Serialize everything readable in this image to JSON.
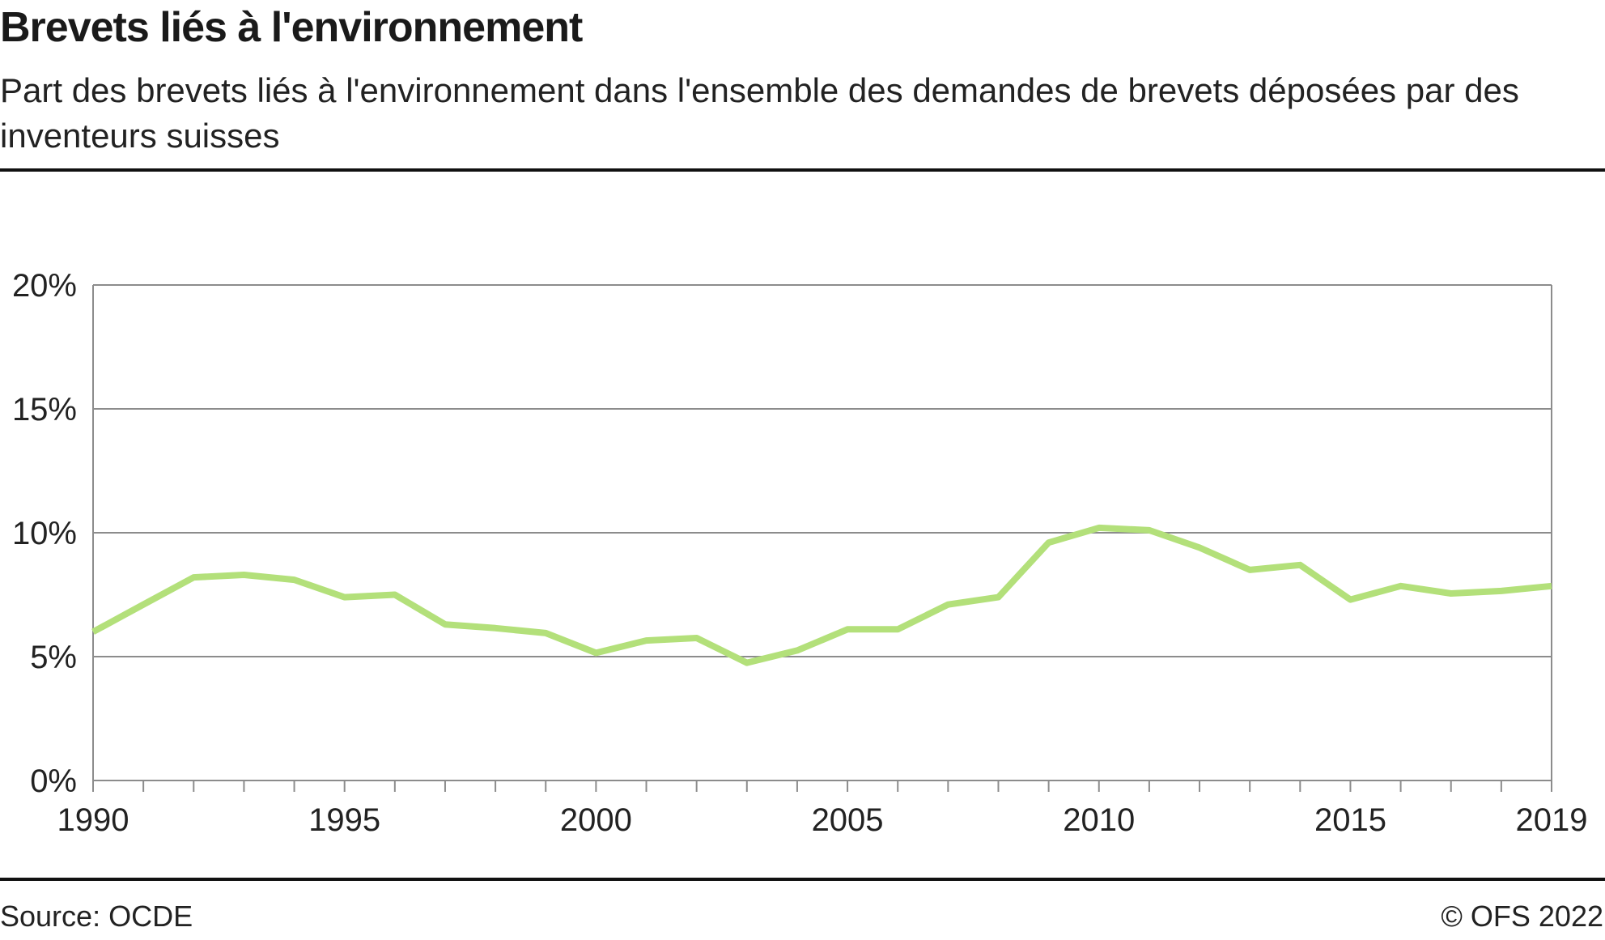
{
  "header": {
    "title": "Brevets liés à l'environnement",
    "subtitle": "Part des brevets liés à l'environnement dans l'ensemble des demandes de brevets déposées par des inventeurs suisses"
  },
  "footer": {
    "source": "Source: OCDE",
    "copyright": "© OFS 2022"
  },
  "chart_data": {
    "type": "line",
    "x": [
      1990,
      1991,
      1992,
      1993,
      1994,
      1995,
      1996,
      1997,
      1998,
      1999,
      2000,
      2001,
      2002,
      2003,
      2004,
      2005,
      2006,
      2007,
      2008,
      2009,
      2010,
      2011,
      2012,
      2013,
      2014,
      2015,
      2016,
      2017,
      2018,
      2019
    ],
    "series": [
      {
        "name": "",
        "color": "#b3e07a",
        "values": [
          6.0,
          7.1,
          8.2,
          8.3,
          8.1,
          7.4,
          7.5,
          6.3,
          6.15,
          5.95,
          5.15,
          5.65,
          5.75,
          4.75,
          5.25,
          6.1,
          6.1,
          7.1,
          7.4,
          9.6,
          10.2,
          10.1,
          9.4,
          8.5,
          8.7,
          7.3,
          7.85,
          7.55,
          7.65,
          7.85
        ]
      }
    ],
    "xlim": [
      1990,
      2019
    ],
    "ylim": [
      0,
      20
    ],
    "yticks": [
      0,
      5,
      10,
      15,
      20
    ],
    "ytick_labels": [
      "0%",
      "5%",
      "10%",
      "15%",
      "20%"
    ],
    "xtick_labels": [
      "1990",
      "1995",
      "2000",
      "2005",
      "2010",
      "2015",
      "2019"
    ],
    "xtick_label_values": [
      1990,
      1995,
      2000,
      2005,
      2010,
      2015,
      2019
    ],
    "grid": true,
    "legend": "none",
    "xlabel": "",
    "ylabel": "",
    "colors": {
      "line": "#b3e07a",
      "grid": "#8c8c8c",
      "axis": "#8c8c8c",
      "text": "#222222"
    }
  }
}
